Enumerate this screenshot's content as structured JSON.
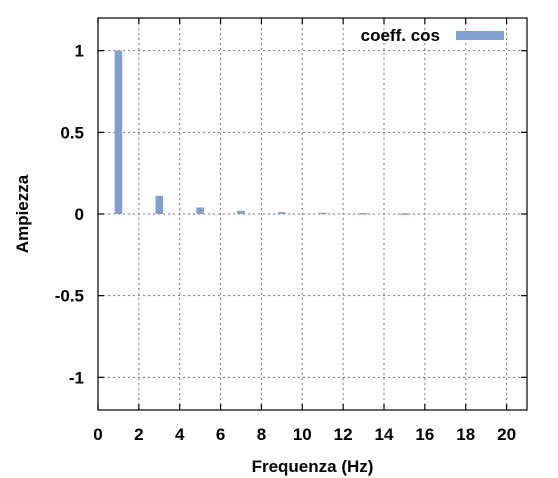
{
  "chart_data": {
    "type": "bar",
    "title": "",
    "xlabel": "Frequenza (Hz)",
    "ylabel": "Ampiezza",
    "xlim": [
      0,
      21
    ],
    "ylim": [
      -1.2,
      1.2
    ],
    "xticks": [
      0,
      2,
      4,
      6,
      8,
      10,
      12,
      14,
      16,
      18,
      20
    ],
    "yticks": [
      -1,
      -0.5,
      0,
      0.5,
      1
    ],
    "grid": true,
    "legend_position": "top-right",
    "series": [
      {
        "name": "coeff. cos",
        "color": "#7f9fd0",
        "x": [
          1,
          3,
          5,
          7,
          9,
          11,
          13,
          15
        ],
        "values": [
          1.0,
          0.111,
          0.04,
          0.02,
          0.012,
          0.008,
          0.006,
          0.004
        ]
      }
    ]
  }
}
